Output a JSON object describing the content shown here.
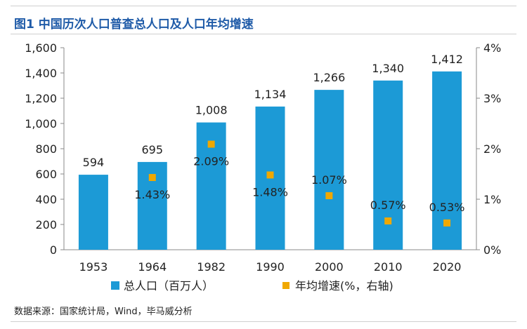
{
  "title": "图1 中国历次人口普查总人口及人口年均增速",
  "source": "数据来源：国家统计局，Wind，毕马威分析",
  "chart_data": {
    "type": "bar",
    "categories": [
      "1953",
      "1964",
      "1982",
      "1990",
      "2000",
      "2010",
      "2020"
    ],
    "series": [
      {
        "name": "总人口（百万人）",
        "type": "bar",
        "axis": "left",
        "color": "#1c9ad6",
        "values": [
          594,
          695,
          1008,
          1134,
          1266,
          1340,
          1412
        ],
        "labels": [
          "594",
          "695",
          "1,008",
          "1,134",
          "1,266",
          "1,340",
          "1,412"
        ]
      },
      {
        "name": "年均增速(%，右轴)",
        "type": "scatter",
        "axis": "right",
        "color": "#f0a800",
        "values": [
          null,
          1.43,
          2.09,
          1.48,
          1.07,
          0.57,
          0.53
        ],
        "labels": [
          "",
          "1.43%",
          "2.09%",
          "1.48%",
          "1.07%",
          "0.57%",
          "0.53%"
        ]
      }
    ],
    "ylim_left": [
      0,
      1600
    ],
    "yticks_left": [
      "0",
      "200",
      "400",
      "600",
      "800",
      "1,000",
      "1,200",
      "1,400",
      "1,600"
    ],
    "ylim_right": [
      0,
      4
    ],
    "yticks_right": [
      "0%",
      "1%",
      "2%",
      "3%",
      "4%"
    ],
    "legend_position": "bottom"
  }
}
